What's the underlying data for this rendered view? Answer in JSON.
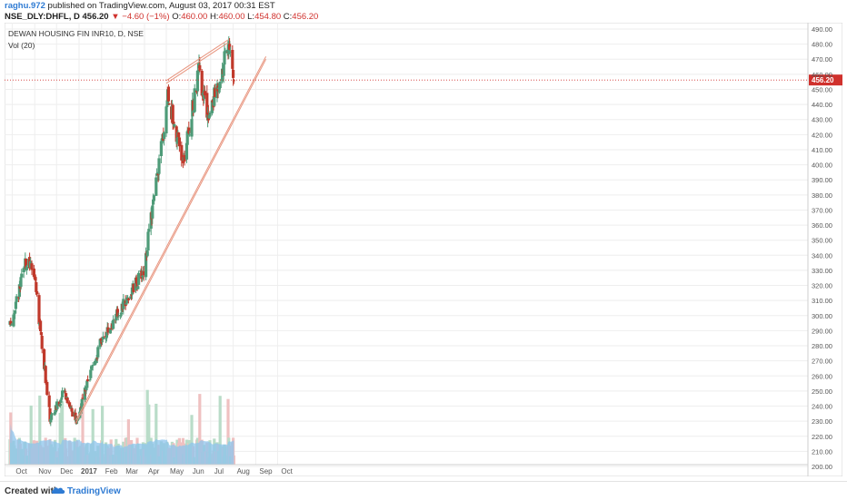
{
  "header": {
    "author": "raghu.972",
    "published": "published on TradingView.com, August 03, 2017 00:31 EST",
    "symbol": "NSE_DLY:DHFL, D",
    "last_price": "456.20",
    "change_arrow": "▼",
    "change": "−4.60 (−1%)",
    "open_label": "O:",
    "open": "460.00",
    "high_label": "H:",
    "high": "460.00",
    "low_label": "L:",
    "low": "454.80",
    "close_label": "C:",
    "close": "456.20"
  },
  "legend": {
    "title": "DEWAN HOUSING FIN INR10, D, NSE",
    "volume": "Vol (20)"
  },
  "footer": {
    "created_with": "Created with",
    "brand": "TradingView",
    "logo_icon": "tradingview-cloud-icon"
  },
  "colors": {
    "up": "#4e9b78",
    "down": "#c0392b",
    "vol_up": "#b9dcc8",
    "vol_down": "#efc1c1",
    "vol_ma": "#8dc4ec",
    "trend": "#e8957f",
    "price_line": "#d0312d",
    "grid": "#eeeeee"
  },
  "chart_data": {
    "type": "candlestick",
    "x_axis_labels": [
      "Oct",
      "Nov",
      "Dec",
      "2017",
      "Feb",
      "Mar",
      "Apr",
      "May",
      "Jun",
      "Jul",
      "Aug",
      "Sep",
      "Oct"
    ],
    "y_axis_labels": [
      "200.00",
      "210.00",
      "220.00",
      "230.00",
      "240.00",
      "250.00",
      "260.00",
      "270.00",
      "280.00",
      "290.00",
      "300.00",
      "310.00",
      "320.00",
      "330.00",
      "340.00",
      "350.00",
      "360.00",
      "370.00",
      "380.00",
      "390.00",
      "400.00",
      "410.00",
      "420.00",
      "430.00",
      "440.00",
      "450.00",
      "460.00",
      "470.00",
      "480.00",
      "490.00"
    ],
    "ylim": [
      200,
      490
    ],
    "current_price_label": "456.20",
    "current_price": 456.2,
    "monthly_path": [
      {
        "period": "Sep 2016 end",
        "close": 293
      },
      {
        "period": "Oct 2016 mid",
        "close": 335
      },
      {
        "period": "Oct 2016 end",
        "close": 330
      },
      {
        "period": "Nov 2016 mid",
        "close": 232
      },
      {
        "period": "Nov 2016 end",
        "close": 238
      },
      {
        "period": "Dec 2016 mid",
        "close": 250
      },
      {
        "period": "Dec 2016 end",
        "close": 230
      },
      {
        "period": "Jan 2017 end",
        "close": 283
      },
      {
        "period": "Feb 2017 end",
        "close": 305
      },
      {
        "period": "Mar 2017 end",
        "close": 330
      },
      {
        "period": "Apr 2017 end",
        "close": 425
      },
      {
        "period": "May 2017 early",
        "close": 448
      },
      {
        "period": "May 2017 end",
        "close": 400
      },
      {
        "period": "Jun 2017 mid",
        "close": 462
      },
      {
        "period": "Jun 2017 end",
        "close": 430
      },
      {
        "period": "Jul 2017 end",
        "close": 478
      },
      {
        "period": "Aug 2017 start",
        "close": 456.2
      }
    ],
    "trendlines": [
      {
        "name": "rising support",
        "from": {
          "date": "2016-12-28",
          "price": 229
        },
        "to": {
          "date": "2017-09-15",
          "price": 470
        }
      },
      {
        "name": "upper resistance",
        "from": {
          "date": "2017-05-01",
          "price": 454
        },
        "to": {
          "date": "2017-07-25",
          "price": 481
        }
      }
    ],
    "volume_indicator": "Vol (20)"
  }
}
